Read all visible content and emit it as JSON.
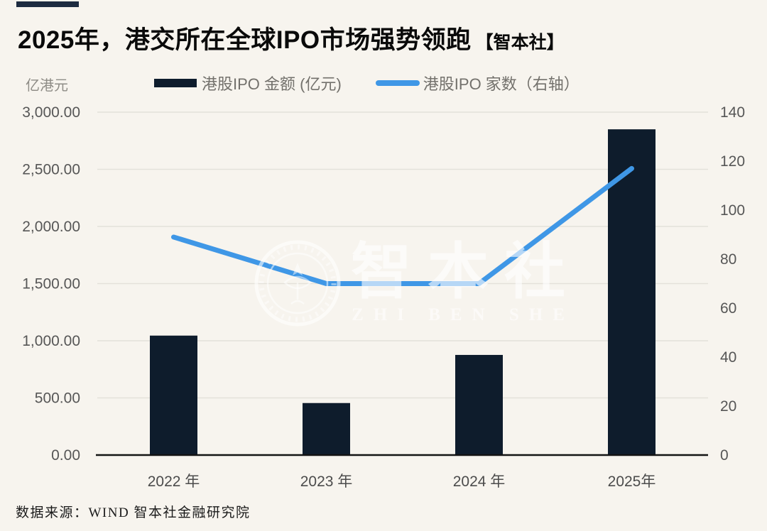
{
  "header": {
    "title": "2025年，港交所在全球IPO市场强势领跑",
    "title_suffix": "【智本社】"
  },
  "axis_unit_label": "亿港元",
  "legend": {
    "bar_label": "港股IPO 金额 (亿元)",
    "line_label": "港股IPO 家数（右轴）"
  },
  "watermark": {
    "cn": "智本社",
    "en": "ZHI BEN SHE"
  },
  "footer": {
    "source": "数据来源：WIND 智本社金融研究院"
  },
  "colors": {
    "background": "#f7f4ee",
    "bar": "#0e1c2c",
    "line": "#3f97e6",
    "accent_bar": "#1d2b40",
    "gridline": "#e4e1da",
    "axis_line": "#141414",
    "tick_text": "#565656",
    "x_label_text": "#4c4c4c"
  },
  "chart_data": {
    "type": "combo",
    "title": "2025年，港交所在全球IPO市场强势领跑",
    "categories": [
      "2022 年",
      "2023 年",
      "2024 年",
      "2025年"
    ],
    "series": [
      {
        "name": "港股IPO 金额 (亿元)",
        "type": "bar",
        "axis": "left",
        "color": "#0e1c2c",
        "values": [
          1045,
          455,
          876,
          2850
        ]
      },
      {
        "name": "港股IPO 家数（右轴）",
        "type": "line",
        "axis": "right",
        "color": "#3f97e6",
        "values": [
          89,
          70,
          70,
          117
        ]
      }
    ],
    "left_axis": {
      "label": "亿港元",
      "min": 0,
      "max": 3000,
      "tick_step": 500,
      "tick_labels": [
        "0.00",
        "500.00",
        "1,000.00",
        "1,500.00",
        "2,000.00",
        "2,500.00",
        "3,000.00"
      ]
    },
    "right_axis": {
      "label": "家数（右轴）",
      "min": 0,
      "max": 140,
      "tick_step": 20,
      "tick_labels": [
        "0",
        "20",
        "40",
        "60",
        "80",
        "100",
        "120",
        "140"
      ]
    },
    "grid": true,
    "legend_position": "top"
  }
}
